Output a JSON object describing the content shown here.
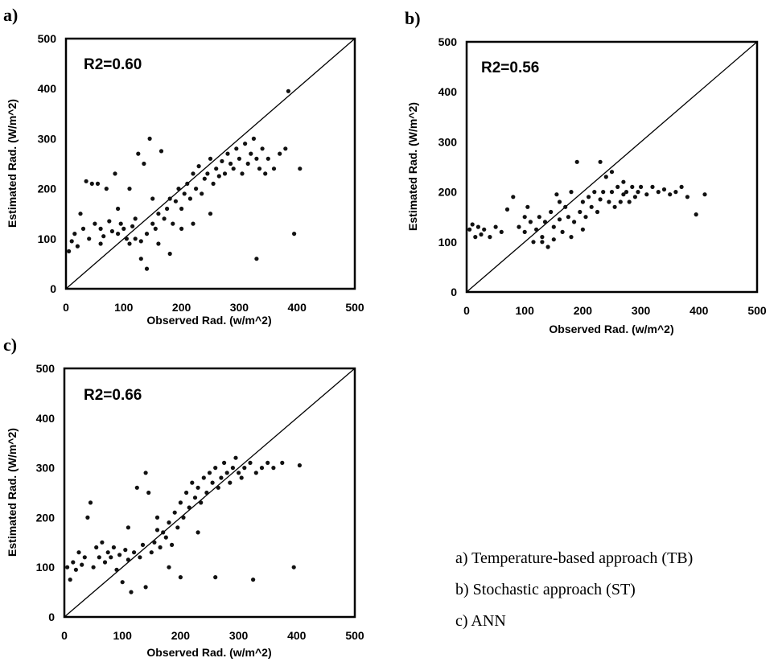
{
  "chart_data": [
    {
      "type": "scatter",
      "panel": "a)",
      "annotation": "R2=0.60",
      "xlabel": "Observed Rad. (w/m^2)",
      "ylabel": "Estimated Rad. (W/m^2)",
      "xlim": [
        0,
        500
      ],
      "ylim": [
        0,
        500
      ],
      "xticks": [
        "0",
        "100",
        "200",
        "300",
        "400",
        "500"
      ],
      "yticks": [
        "0",
        "100",
        "200",
        "300",
        "400",
        "500"
      ],
      "reference_line": "1:1",
      "points": [
        [
          5,
          75
        ],
        [
          10,
          95
        ],
        [
          15,
          110
        ],
        [
          20,
          85
        ],
        [
          25,
          150
        ],
        [
          30,
          120
        ],
        [
          35,
          215
        ],
        [
          40,
          100
        ],
        [
          45,
          210
        ],
        [
          50,
          130
        ],
        [
          55,
          210
        ],
        [
          60,
          120
        ],
        [
          65,
          105
        ],
        [
          70,
          200
        ],
        [
          75,
          135
        ],
        [
          80,
          115
        ],
        [
          85,
          230
        ],
        [
          90,
          110
        ],
        [
          95,
          130
        ],
        [
          100,
          120
        ],
        [
          105,
          100
        ],
        [
          110,
          90
        ],
        [
          115,
          125
        ],
        [
          120,
          100
        ],
        [
          125,
          270
        ],
        [
          130,
          95
        ],
        [
          135,
          250
        ],
        [
          140,
          110
        ],
        [
          145,
          300
        ],
        [
          150,
          130
        ],
        [
          155,
          120
        ],
        [
          160,
          150
        ],
        [
          165,
          275
        ],
        [
          170,
          140
        ],
        [
          175,
          160
        ],
        [
          180,
          180
        ],
        [
          185,
          130
        ],
        [
          190,
          175
        ],
        [
          195,
          200
        ],
        [
          200,
          160
        ],
        [
          205,
          190
        ],
        [
          210,
          210
        ],
        [
          215,
          180
        ],
        [
          220,
          230
        ],
        [
          225,
          200
        ],
        [
          230,
          245
        ],
        [
          235,
          190
        ],
        [
          240,
          220
        ],
        [
          245,
          230
        ],
        [
          250,
          260
        ],
        [
          255,
          210
        ],
        [
          260,
          240
        ],
        [
          265,
          225
        ],
        [
          270,
          255
        ],
        [
          275,
          230
        ],
        [
          280,
          270
        ],
        [
          285,
          250
        ],
        [
          290,
          240
        ],
        [
          295,
          280
        ],
        [
          300,
          260
        ],
        [
          305,
          230
        ],
        [
          310,
          290
        ],
        [
          315,
          250
        ],
        [
          320,
          270
        ],
        [
          325,
          300
        ],
        [
          330,
          260
        ],
        [
          335,
          240
        ],
        [
          340,
          280
        ],
        [
          345,
          230
        ],
        [
          350,
          260
        ],
        [
          360,
          240
        ],
        [
          370,
          270
        ],
        [
          380,
          280
        ],
        [
          385,
          395
        ],
        [
          395,
          110
        ],
        [
          405,
          240
        ],
        [
          330,
          60
        ],
        [
          140,
          40
        ],
        [
          110,
          200
        ],
        [
          160,
          90
        ],
        [
          200,
          120
        ],
        [
          180,
          70
        ],
        [
          220,
          130
        ],
        [
          250,
          150
        ],
        [
          120,
          140
        ],
        [
          90,
          160
        ],
        [
          60,
          90
        ],
        [
          150,
          180
        ],
        [
          130,
          60
        ]
      ]
    },
    {
      "type": "scatter",
      "panel": "b)",
      "annotation": "R2=0.56",
      "xlabel": "Observed Rad. (w/m^2)",
      "ylabel": "Estimated Rad. (W/m^2)",
      "xlim": [
        0,
        500
      ],
      "ylim": [
        0,
        500
      ],
      "xticks": [
        "0",
        "100",
        "200",
        "300",
        "400",
        "500"
      ],
      "yticks": [
        "0",
        "100",
        "200",
        "300",
        "400",
        "500"
      ],
      "reference_line": "1:1",
      "points": [
        [
          5,
          125
        ],
        [
          10,
          135
        ],
        [
          15,
          110
        ],
        [
          20,
          130
        ],
        [
          25,
          115
        ],
        [
          30,
          125
        ],
        [
          40,
          110
        ],
        [
          50,
          130
        ],
        [
          60,
          120
        ],
        [
          70,
          165
        ],
        [
          80,
          190
        ],
        [
          90,
          130
        ],
        [
          100,
          120
        ],
        [
          105,
          170
        ],
        [
          110,
          140
        ],
        [
          115,
          100
        ],
        [
          120,
          125
        ],
        [
          125,
          150
        ],
        [
          130,
          110
        ],
        [
          135,
          140
        ],
        [
          140,
          90
        ],
        [
          145,
          160
        ],
        [
          150,
          130
        ],
        [
          155,
          195
        ],
        [
          160,
          145
        ],
        [
          165,
          120
        ],
        [
          170,
          170
        ],
        [
          175,
          150
        ],
        [
          180,
          200
        ],
        [
          185,
          140
        ],
        [
          190,
          260
        ],
        [
          195,
          160
        ],
        [
          200,
          180
        ],
        [
          205,
          150
        ],
        [
          210,
          190
        ],
        [
          215,
          170
        ],
        [
          220,
          200
        ],
        [
          225,
          160
        ],
        [
          230,
          185
        ],
        [
          235,
          200
        ],
        [
          240,
          230
        ],
        [
          245,
          180
        ],
        [
          250,
          200
        ],
        [
          255,
          170
        ],
        [
          260,
          210
        ],
        [
          265,
          180
        ],
        [
          270,
          195
        ],
        [
          275,
          200
        ],
        [
          280,
          180
        ],
        [
          285,
          210
        ],
        [
          290,
          190
        ],
        [
          295,
          200
        ],
        [
          300,
          210
        ],
        [
          310,
          195
        ],
        [
          320,
          210
        ],
        [
          330,
          200
        ],
        [
          340,
          205
        ],
        [
          350,
          195
        ],
        [
          360,
          200
        ],
        [
          370,
          210
        ],
        [
          380,
          190
        ],
        [
          395,
          155
        ],
        [
          410,
          195
        ],
        [
          230,
          260
        ],
        [
          250,
          240
        ],
        [
          270,
          220
        ],
        [
          130,
          100
        ],
        [
          150,
          105
        ],
        [
          100,
          150
        ],
        [
          180,
          110
        ],
        [
          200,
          125
        ],
        [
          160,
          180
        ]
      ]
    },
    {
      "type": "scatter",
      "panel": "c)",
      "annotation": "R2=0.66",
      "xlabel": "Observed Rad. (w/m^2)",
      "ylabel": "Estimated Rad. (W/m^2)",
      "xlim": [
        0,
        500
      ],
      "ylim": [
        0,
        500
      ],
      "xticks": [
        "0",
        "100",
        "200",
        "300",
        "400",
        "500"
      ],
      "yticks": [
        "0",
        "100",
        "200",
        "300",
        "400",
        "500"
      ],
      "reference_line": "1:1",
      "points": [
        [
          5,
          100
        ],
        [
          10,
          75
        ],
        [
          15,
          110
        ],
        [
          20,
          95
        ],
        [
          25,
          130
        ],
        [
          30,
          105
        ],
        [
          35,
          120
        ],
        [
          40,
          200
        ],
        [
          45,
          230
        ],
        [
          50,
          100
        ],
        [
          55,
          140
        ],
        [
          60,
          120
        ],
        [
          65,
          150
        ],
        [
          70,
          110
        ],
        [
          75,
          130
        ],
        [
          80,
          120
        ],
        [
          85,
          140
        ],
        [
          90,
          95
        ],
        [
          95,
          125
        ],
        [
          100,
          70
        ],
        [
          105,
          135
        ],
        [
          110,
          115
        ],
        [
          115,
          50
        ],
        [
          120,
          130
        ],
        [
          125,
          260
        ],
        [
          130,
          120
        ],
        [
          135,
          145
        ],
        [
          140,
          60
        ],
        [
          145,
          250
        ],
        [
          150,
          130
        ],
        [
          155,
          150
        ],
        [
          160,
          175
        ],
        [
          165,
          140
        ],
        [
          170,
          170
        ],
        [
          175,
          160
        ],
        [
          180,
          190
        ],
        [
          185,
          145
        ],
        [
          190,
          210
        ],
        [
          195,
          180
        ],
        [
          200,
          230
        ],
        [
          205,
          200
        ],
        [
          210,
          250
        ],
        [
          215,
          220
        ],
        [
          220,
          270
        ],
        [
          225,
          240
        ],
        [
          230,
          260
        ],
        [
          235,
          230
        ],
        [
          240,
          280
        ],
        [
          245,
          250
        ],
        [
          250,
          290
        ],
        [
          255,
          270
        ],
        [
          260,
          300
        ],
        [
          265,
          260
        ],
        [
          270,
          280
        ],
        [
          275,
          310
        ],
        [
          280,
          290
        ],
        [
          285,
          270
        ],
        [
          290,
          300
        ],
        [
          295,
          320
        ],
        [
          300,
          290
        ],
        [
          305,
          280
        ],
        [
          310,
          300
        ],
        [
          320,
          310
        ],
        [
          330,
          290
        ],
        [
          340,
          300
        ],
        [
          350,
          310
        ],
        [
          360,
          300
        ],
        [
          375,
          310
        ],
        [
          395,
          100
        ],
        [
          405,
          305
        ],
        [
          325,
          75
        ],
        [
          260,
          80
        ],
        [
          160,
          200
        ],
        [
          200,
          80
        ],
        [
          230,
          170
        ],
        [
          140,
          290
        ],
        [
          110,
          180
        ],
        [
          180,
          100
        ]
      ]
    }
  ],
  "legend": [
    "a) Temperature-based approach (TB)",
    "b) Stochastic approach (ST)",
    "c) ANN"
  ]
}
